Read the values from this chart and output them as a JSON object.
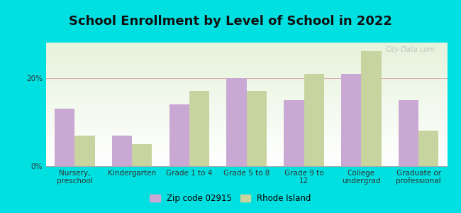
{
  "title": "School Enrollment by Level of School in 2022",
  "categories": [
    "Nursery,\npreschool",
    "Kindergarten",
    "Grade 1 to 4",
    "Grade 5 to 8",
    "Grade 9 to\n12",
    "College\nundergrad",
    "Graduate or\nprofessional"
  ],
  "zip_values": [
    13.0,
    7.0,
    14.0,
    20.0,
    15.0,
    21.0,
    15.0
  ],
  "ri_values": [
    7.0,
    5.0,
    17.0,
    17.0,
    21.0,
    26.0,
    8.0
  ],
  "zip_color": "#c9a8d4",
  "ri_color": "#c8d4a0",
  "background_color": "#00e0e0",
  "grid_color": "#dda8b0",
  "title_fontsize": 13,
  "tick_fontsize": 7.5,
  "legend_zip_label": "Zip code 02915",
  "legend_ri_label": "Rhode Island",
  "ylim": [
    0,
    28
  ],
  "bar_width": 0.35,
  "watermark": "City-Data.com"
}
